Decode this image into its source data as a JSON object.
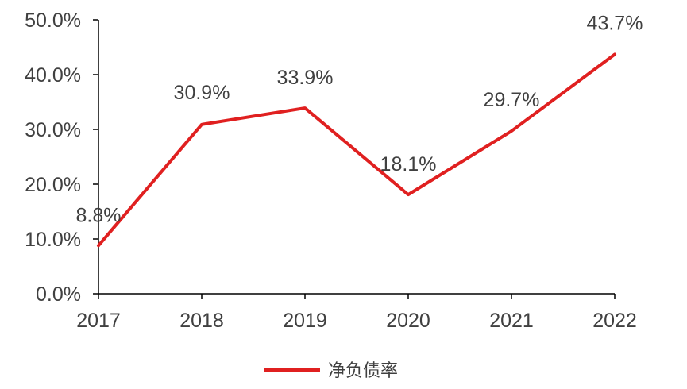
{
  "chart_data": {
    "type": "line",
    "categories": [
      "2017",
      "2018",
      "2019",
      "2020",
      "2021",
      "2022"
    ],
    "series": [
      {
        "name": "净负债率",
        "values": [
          8.8,
          30.9,
          33.9,
          18.1,
          29.7,
          43.7
        ],
        "labels": [
          "8.8%",
          "30.9%",
          "33.9%",
          "18.1%",
          "29.7%",
          "43.7%"
        ],
        "color": "#E02020"
      }
    ],
    "yticks": [
      "0.0%",
      "10.0%",
      "20.0%",
      "30.0%",
      "40.0%",
      "50.0%"
    ],
    "ylim": [
      0,
      50
    ],
    "grid": false,
    "legend_position": "bottom",
    "axis_color": "#000000",
    "text_color": "#404040"
  }
}
